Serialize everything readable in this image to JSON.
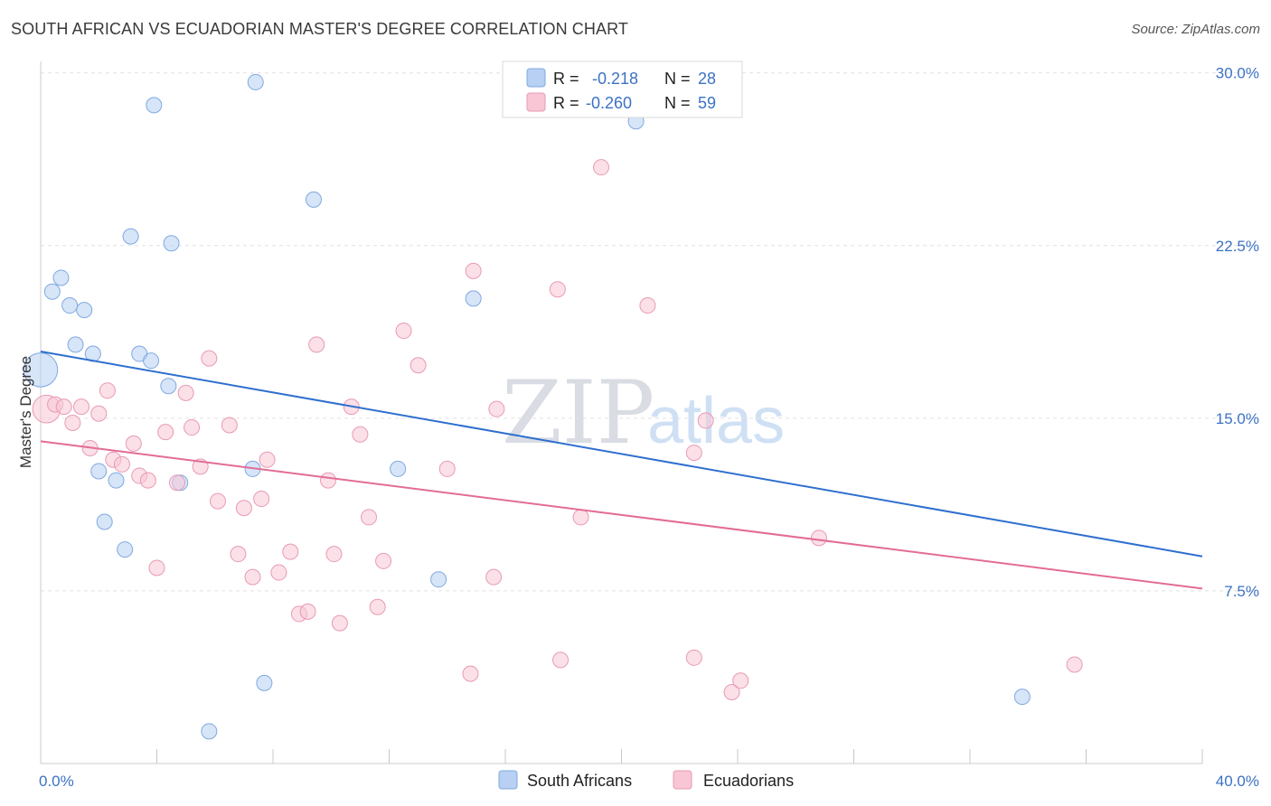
{
  "title": "SOUTH AFRICAN VS ECUADORIAN MASTER'S DEGREE CORRELATION CHART",
  "source": "Source: ZipAtlas.com",
  "watermark": {
    "zip": "ZIP",
    "atlas": "atlas"
  },
  "legend_stats": [
    {
      "r_label": "R =",
      "r_value": "-0.218",
      "n_label": "N =",
      "n_value": "28",
      "color": "#b7d0f3",
      "stroke": "#7fa9e0"
    },
    {
      "r_label": "R =",
      "r_value": "-0.260",
      "n_label": "N =",
      "n_value": "59",
      "color": "#f8c6d5",
      "stroke": "#e99ab3"
    }
  ],
  "bottom_legend": [
    {
      "label": "South Africans",
      "color": "#b7d0f3",
      "stroke": "#7fa9e0"
    },
    {
      "label": "Ecuadorians",
      "color": "#f8c6d5",
      "stroke": "#e99ab3"
    }
  ],
  "chart_data": {
    "type": "scatter",
    "ylabel": "Master's Degree",
    "xlim": [
      0,
      40
    ],
    "ylim": [
      0,
      30.5
    ],
    "x_tick_labels": [
      {
        "value": 0,
        "label": "0.0%"
      },
      {
        "value": 40,
        "label": "40.0%"
      }
    ],
    "y_tick_labels": [
      {
        "value": 7.5,
        "label": "7.5%"
      },
      {
        "value": 15,
        "label": "15.0%"
      },
      {
        "value": 22.5,
        "label": "22.5%"
      },
      {
        "value": 30,
        "label": "30.0%"
      }
    ],
    "grid": true,
    "series": [
      {
        "name": "South Africans",
        "color": "#b7d0f3",
        "stroke": "#7fa9e0",
        "line_color": "#2f6fcf",
        "trend": [
          [
            0,
            17.9
          ],
          [
            40,
            9.0
          ]
        ],
        "points": [
          [
            0.0,
            17.1,
            2.2
          ],
          [
            0.4,
            20.5,
            1
          ],
          [
            0.7,
            21.1,
            1
          ],
          [
            1.0,
            19.9,
            1
          ],
          [
            1.2,
            18.2,
            1
          ],
          [
            1.5,
            19.7,
            1
          ],
          [
            1.8,
            17.8,
            1
          ],
          [
            2.0,
            12.7,
            1
          ],
          [
            2.2,
            10.5,
            1
          ],
          [
            2.6,
            12.3,
            1
          ],
          [
            2.9,
            9.3,
            1
          ],
          [
            3.1,
            22.9,
            1
          ],
          [
            3.4,
            17.8,
            1
          ],
          [
            3.8,
            17.5,
            1
          ],
          [
            3.9,
            28.6,
            1
          ],
          [
            4.4,
            16.4,
            1
          ],
          [
            4.5,
            22.6,
            1
          ],
          [
            4.8,
            12.2,
            1
          ],
          [
            5.8,
            1.4,
            1
          ],
          [
            7.4,
            29.6,
            1
          ],
          [
            7.3,
            12.8,
            1
          ],
          [
            7.7,
            3.5,
            1
          ],
          [
            9.4,
            24.5,
            1
          ],
          [
            12.3,
            12.8,
            1
          ],
          [
            13.7,
            8.0,
            1
          ],
          [
            14.9,
            20.2,
            1
          ],
          [
            20.5,
            27.9,
            1
          ],
          [
            33.8,
            2.9,
            1
          ]
        ]
      },
      {
        "name": "Ecuadorians",
        "color": "#f8c6d5",
        "stroke": "#e99ab3",
        "line_color": "#e36c95",
        "trend": [
          [
            0,
            14.0
          ],
          [
            40,
            7.6
          ]
        ],
        "points": [
          [
            0.2,
            15.4,
            1.8
          ],
          [
            0.5,
            15.6,
            1
          ],
          [
            0.8,
            15.5,
            1
          ],
          [
            1.1,
            14.8,
            1
          ],
          [
            1.4,
            15.5,
            1
          ],
          [
            1.7,
            13.7,
            1
          ],
          [
            2.0,
            15.2,
            1
          ],
          [
            2.3,
            16.2,
            1
          ],
          [
            2.5,
            13.2,
            1
          ],
          [
            2.8,
            13.0,
            1
          ],
          [
            3.2,
            13.9,
            1
          ],
          [
            3.4,
            12.5,
            1
          ],
          [
            3.7,
            12.3,
            1
          ],
          [
            4.0,
            8.5,
            1
          ],
          [
            4.3,
            14.4,
            1
          ],
          [
            4.7,
            12.2,
            1
          ],
          [
            5.0,
            16.1,
            1
          ],
          [
            5.2,
            14.6,
            1
          ],
          [
            5.5,
            12.9,
            1
          ],
          [
            5.8,
            17.6,
            1
          ],
          [
            6.1,
            11.4,
            1
          ],
          [
            6.5,
            14.7,
            1
          ],
          [
            6.8,
            9.1,
            1
          ],
          [
            7.0,
            11.1,
            1
          ],
          [
            7.3,
            8.1,
            1
          ],
          [
            7.6,
            11.5,
            1
          ],
          [
            7.8,
            13.2,
            1
          ],
          [
            8.2,
            8.3,
            1
          ],
          [
            8.6,
            9.2,
            1
          ],
          [
            8.9,
            6.5,
            1
          ],
          [
            9.2,
            6.6,
            1
          ],
          [
            9.5,
            18.2,
            1
          ],
          [
            9.9,
            12.3,
            1
          ],
          [
            10.1,
            9.1,
            1
          ],
          [
            10.3,
            6.1,
            1
          ],
          [
            10.7,
            15.5,
            1
          ],
          [
            11.0,
            14.3,
            1
          ],
          [
            11.3,
            10.7,
            1
          ],
          [
            11.6,
            6.8,
            1
          ],
          [
            11.8,
            8.8,
            1
          ],
          [
            12.5,
            18.8,
            1
          ],
          [
            13.0,
            17.3,
            1
          ],
          [
            14.0,
            12.8,
            1
          ],
          [
            14.9,
            21.4,
            1
          ],
          [
            14.8,
            3.9,
            1
          ],
          [
            15.6,
            8.1,
            1
          ],
          [
            15.7,
            15.4,
            1
          ],
          [
            17.8,
            20.6,
            1
          ],
          [
            17.9,
            4.5,
            1
          ],
          [
            18.6,
            10.7,
            1
          ],
          [
            19.3,
            25.9,
            1
          ],
          [
            20.9,
            19.9,
            1
          ],
          [
            22.5,
            4.6,
            1
          ],
          [
            22.5,
            13.5,
            1
          ],
          [
            22.9,
            14.9,
            1
          ],
          [
            23.8,
            3.1,
            1
          ],
          [
            24.1,
            3.6,
            1
          ],
          [
            26.8,
            9.8,
            1
          ],
          [
            35.6,
            4.3,
            1
          ]
        ]
      }
    ]
  }
}
